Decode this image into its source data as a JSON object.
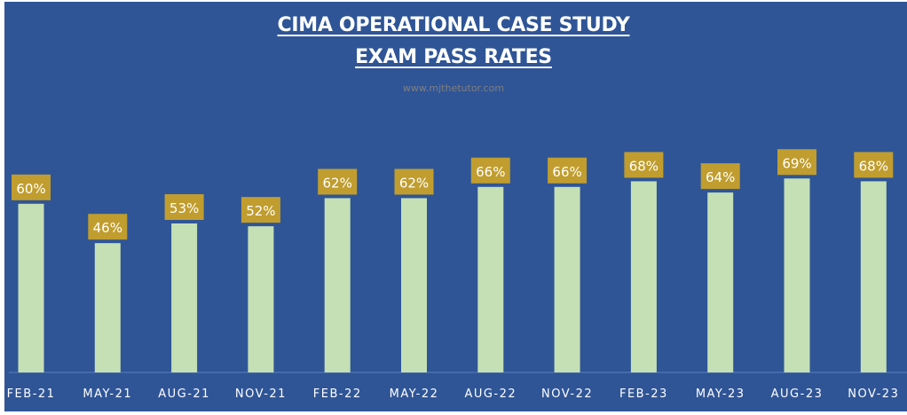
{
  "colors": {
    "background": "#2f5597",
    "bar": "#c5e0b4",
    "label_box": "#c09d2e",
    "text": "#ffffff",
    "subtitle": "#7f7f7f"
  },
  "chart_data": {
    "type": "bar",
    "title": "CIMA OPERATIONAL CASE STUDY",
    "subtitle": "EXAM PASS RATES",
    "watermark": "www.mjthetutor.com",
    "categories": [
      "FEB-21",
      "MAY-21",
      "AUG-21",
      "NOV-21",
      "FEB-22",
      "MAY-22",
      "AUG-22",
      "NOV-22",
      "FEB-23",
      "MAY-23",
      "AUG-23",
      "NOV-23"
    ],
    "values": [
      60,
      46,
      53,
      52,
      62,
      62,
      66,
      66,
      68,
      64,
      69,
      68
    ],
    "data_labels": [
      "60%",
      "46%",
      "53%",
      "52%",
      "62%",
      "62%",
      "66%",
      "66%",
      "68%",
      "64%",
      "69%",
      "68%"
    ],
    "xlabel": "",
    "ylabel": "",
    "ylim": [
      0,
      100
    ],
    "grid": false,
    "legend": "none"
  }
}
